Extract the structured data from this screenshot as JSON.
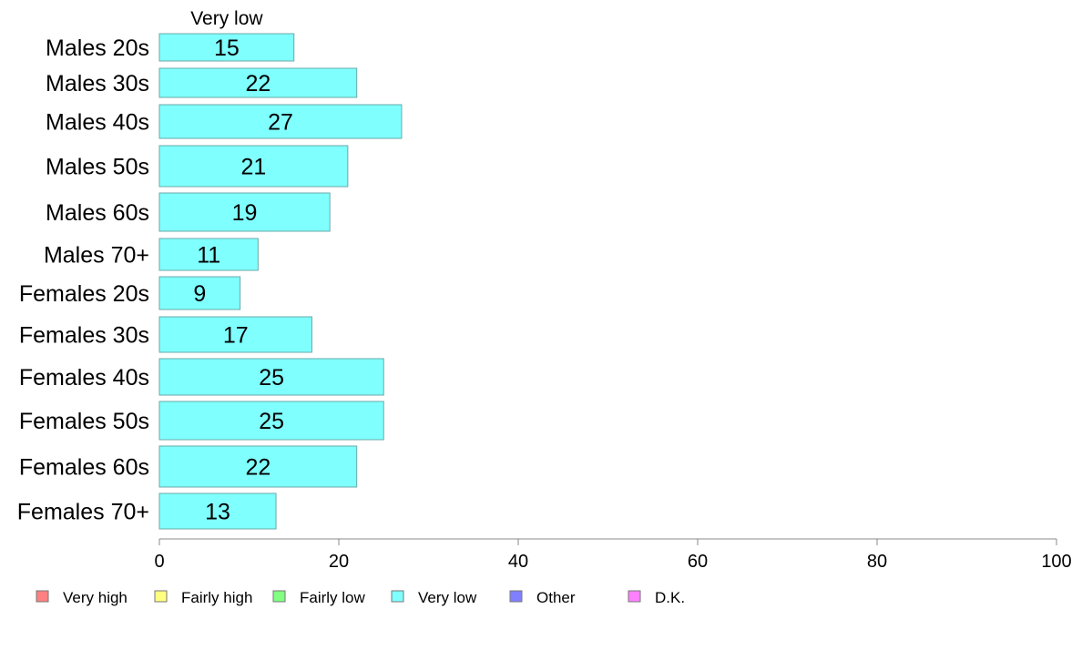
{
  "chart_data": {
    "type": "bar",
    "orientation": "horizontal",
    "stacked": true,
    "categories": [
      "Males 20s",
      "Males 30s",
      "Males 40s",
      "Males 50s",
      "Males 60s",
      "Males 70+",
      "Females 20s",
      "Females 30s",
      "Females 40s",
      "Females 50s",
      "Females 60s",
      "Females 70+"
    ],
    "series": [
      {
        "name": "Very low",
        "color": "#80ffff",
        "values": [
          15,
          22,
          27,
          21,
          19,
          11,
          9,
          17,
          25,
          25,
          22,
          13
        ]
      }
    ],
    "series_label": "Very low",
    "xlim": [
      0,
      100
    ],
    "xticks": [
      0,
      20,
      40,
      60,
      80,
      100
    ],
    "grid": false,
    "legend_position": "bottom",
    "legend": [
      {
        "label": "Very high",
        "color": "#ff8080"
      },
      {
        "label": "Fairly high",
        "color": "#ffff80"
      },
      {
        "label": "Fairly low",
        "color": "#80ff80"
      },
      {
        "label": "Very low",
        "color": "#80ffff"
      },
      {
        "label": "Other",
        "color": "#8080ff"
      },
      {
        "label": "D.K.",
        "color": "#ff80ff"
      }
    ]
  }
}
